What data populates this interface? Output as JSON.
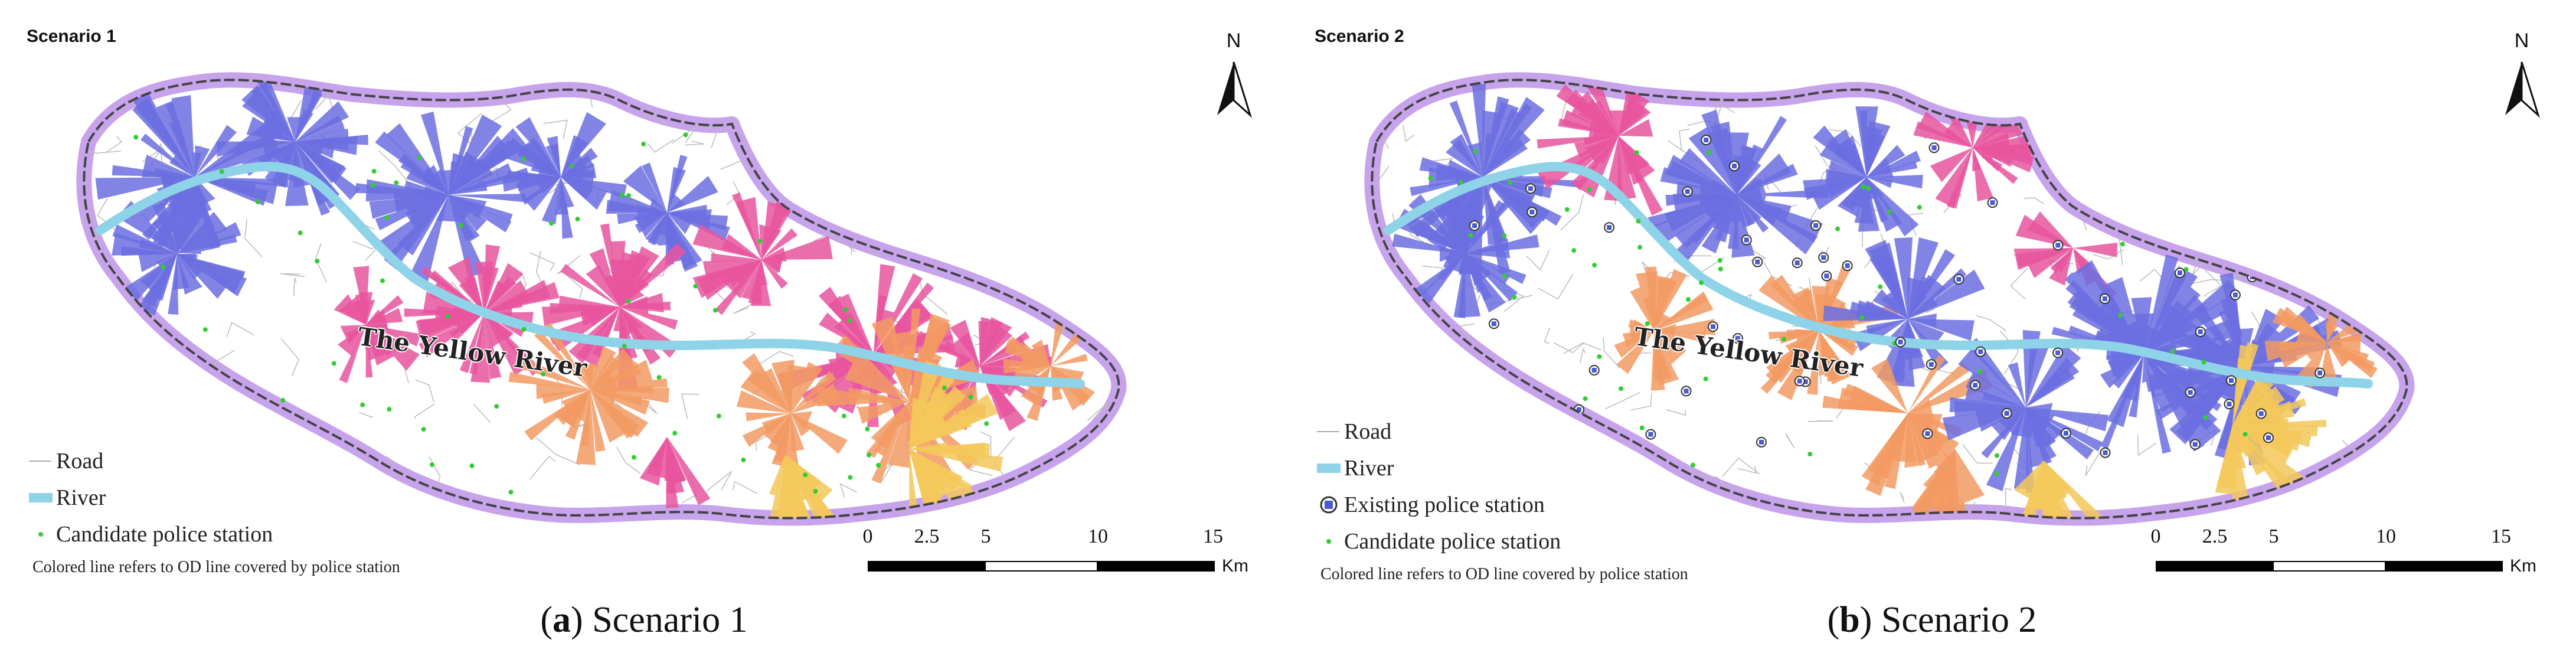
{
  "panels": [
    {
      "id": "a",
      "title": "Scenario 1",
      "north_label": "N",
      "river_label": "The Yellow River",
      "legend": [
        {
          "label": "Road",
          "symbol": "road"
        },
        {
          "label": "River",
          "symbol": "river"
        },
        {
          "label": "Candidate police station",
          "symbol": "candidate"
        }
      ],
      "note": "Colored line refers to OD line covered by police station",
      "scale": {
        "ticks": [
          "0",
          "2.5",
          "5",
          "10",
          "15"
        ],
        "unit": "Km"
      },
      "caption_letter": "a",
      "caption_text": " Scenario 1"
    },
    {
      "id": "b",
      "title": "Scenario 2",
      "north_label": "N",
      "river_label": "The Yellow River",
      "legend": [
        {
          "label": "Road",
          "symbol": "road"
        },
        {
          "label": "River",
          "symbol": "river"
        },
        {
          "label": "Existing police station",
          "symbol": "existing"
        },
        {
          "label": "Candidate police station",
          "symbol": "candidate"
        }
      ],
      "note": "Colored line refers to OD line covered by police station",
      "scale": {
        "ticks": [
          "0",
          "2.5",
          "5",
          "10",
          "15"
        ],
        "unit": "Km"
      },
      "caption_letter": "b",
      "caption_text": " Scenario 2"
    }
  ],
  "colors": {
    "boundary_halo": "#c7a3ec",
    "boundary_line": "#444444",
    "river": "#8fd3e8",
    "blue_coverage": "#6b6ee0",
    "pink_coverage": "#e8559e",
    "orange_coverage": "#f29a63",
    "yellow_coverage": "#f3c85a",
    "candidate_dot": "#33cc33",
    "road": "#bbbbbb"
  }
}
